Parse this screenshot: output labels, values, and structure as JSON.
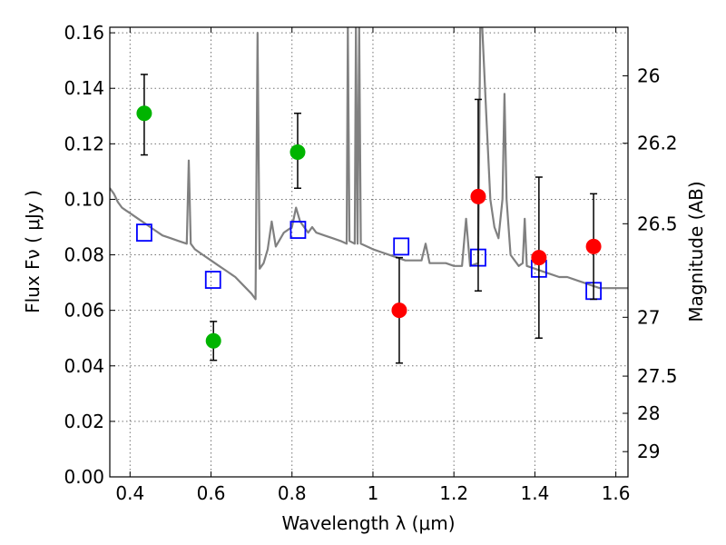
{
  "chart_data": {
    "type": "scatter",
    "xlabel": "Wavelength  λ (μm)",
    "ylabel": "Flux  Fν  ( μJy )",
    "ylabel_right": "Magnitude (AB)",
    "xlim": [
      0.35,
      1.63
    ],
    "ylim": [
      0.0,
      0.162
    ],
    "grid": true,
    "x_ticks": [
      0.4,
      0.6,
      0.8,
      1.0,
      1.2,
      1.4,
      1.6
    ],
    "x_tick_labels": [
      "0.4",
      "0.6",
      "0.8",
      "1",
      "1.2",
      "1.4",
      "1.6"
    ],
    "y_ticks": [
      0.0,
      0.02,
      0.04,
      0.06,
      0.08,
      0.1,
      0.12,
      0.14,
      0.16
    ],
    "y_tick_labels": [
      "0.00",
      "0.02",
      "0.04",
      "0.06",
      "0.08",
      "0.10",
      "0.12",
      "0.14",
      "0.16"
    ],
    "right_ticks": [
      {
        "label": "26",
        "flux": 0.1445
      },
      {
        "label": "26.2",
        "flux": 0.1202
      },
      {
        "label": "26.5",
        "flux": 0.0912
      },
      {
        "label": "27",
        "flux": 0.0575
      },
      {
        "label": "27.5",
        "flux": 0.0363
      },
      {
        "label": "28",
        "flux": 0.0229
      },
      {
        "label": "29",
        "flux": 0.0091
      }
    ],
    "series": [
      {
        "kind": "spectrum",
        "color": "#808080",
        "points": [
          [
            0.35,
            0.104
          ],
          [
            0.36,
            0.102
          ],
          [
            0.37,
            0.099
          ],
          [
            0.38,
            0.097
          ],
          [
            0.39,
            0.096
          ],
          [
            0.4,
            0.095
          ],
          [
            0.42,
            0.093
          ],
          [
            0.44,
            0.091
          ],
          [
            0.46,
            0.089
          ],
          [
            0.48,
            0.087
          ],
          [
            0.5,
            0.086
          ],
          [
            0.52,
            0.085
          ],
          [
            0.54,
            0.084
          ],
          [
            0.545,
            0.114
          ],
          [
            0.55,
            0.084
          ],
          [
            0.56,
            0.082
          ],
          [
            0.58,
            0.08
          ],
          [
            0.6,
            0.078
          ],
          [
            0.62,
            0.076
          ],
          [
            0.64,
            0.074
          ],
          [
            0.66,
            0.072
          ],
          [
            0.68,
            0.069
          ],
          [
            0.7,
            0.066
          ],
          [
            0.71,
            0.064
          ],
          [
            0.715,
            0.16
          ],
          [
            0.72,
            0.075
          ],
          [
            0.73,
            0.077
          ],
          [
            0.74,
            0.082
          ],
          [
            0.75,
            0.092
          ],
          [
            0.76,
            0.083
          ],
          [
            0.78,
            0.088
          ],
          [
            0.8,
            0.09
          ],
          [
            0.81,
            0.097
          ],
          [
            0.82,
            0.092
          ],
          [
            0.83,
            0.09
          ],
          [
            0.84,
            0.088
          ],
          [
            0.85,
            0.09
          ],
          [
            0.86,
            0.088
          ],
          [
            0.88,
            0.087
          ],
          [
            0.9,
            0.086
          ],
          [
            0.92,
            0.085
          ],
          [
            0.935,
            0.084
          ],
          [
            0.938,
            0.162
          ],
          [
            0.942,
            0.085
          ],
          [
            0.955,
            0.084
          ],
          [
            0.958,
            0.162
          ],
          [
            0.962,
            0.084
          ],
          [
            0.966,
            0.162
          ],
          [
            0.97,
            0.084
          ],
          [
            1.0,
            0.082
          ],
          [
            1.02,
            0.081
          ],
          [
            1.04,
            0.08
          ],
          [
            1.06,
            0.079
          ],
          [
            1.08,
            0.078
          ],
          [
            1.1,
            0.078
          ],
          [
            1.12,
            0.078
          ],
          [
            1.13,
            0.084
          ],
          [
            1.14,
            0.077
          ],
          [
            1.16,
            0.077
          ],
          [
            1.18,
            0.077
          ],
          [
            1.2,
            0.076
          ],
          [
            1.22,
            0.076
          ],
          [
            1.23,
            0.093
          ],
          [
            1.24,
            0.076
          ],
          [
            1.26,
            0.077
          ],
          [
            1.265,
            0.162
          ],
          [
            1.27,
            0.162
          ],
          [
            1.28,
            0.13
          ],
          [
            1.29,
            0.1
          ],
          [
            1.3,
            0.09
          ],
          [
            1.31,
            0.086
          ],
          [
            1.32,
            0.1
          ],
          [
            1.325,
            0.138
          ],
          [
            1.33,
            0.1
          ],
          [
            1.34,
            0.08
          ],
          [
            1.36,
            0.076
          ],
          [
            1.37,
            0.077
          ],
          [
            1.375,
            0.093
          ],
          [
            1.38,
            0.076
          ],
          [
            1.4,
            0.075
          ],
          [
            1.42,
            0.074
          ],
          [
            1.44,
            0.073
          ],
          [
            1.46,
            0.072
          ],
          [
            1.48,
            0.072
          ],
          [
            1.5,
            0.071
          ],
          [
            1.52,
            0.07
          ],
          [
            1.54,
            0.069
          ],
          [
            1.56,
            0.068
          ],
          [
            1.58,
            0.068
          ],
          [
            1.6,
            0.068
          ],
          [
            1.63,
            0.068
          ]
        ]
      },
      {
        "kind": "model",
        "marker": "open-square",
        "color": "#0000ff",
        "points": [
          [
            0.435,
            0.088
          ],
          [
            0.605,
            0.071
          ],
          [
            0.815,
            0.089
          ],
          [
            1.07,
            0.083
          ],
          [
            1.26,
            0.079
          ],
          [
            1.41,
            0.075
          ],
          [
            1.545,
            0.067
          ]
        ]
      },
      {
        "kind": "observed",
        "marker": "filled-circle",
        "color": "#00b400",
        "points": [
          {
            "x": 0.435,
            "y": 0.131,
            "yerr": [
              0.116,
              0.145
            ]
          },
          {
            "x": 0.606,
            "y": 0.049,
            "yerr": [
              0.042,
              0.056
            ]
          },
          {
            "x": 0.814,
            "y": 0.117,
            "yerr": [
              0.104,
              0.131
            ]
          }
        ]
      },
      {
        "kind": "observed",
        "marker": "filled-circle",
        "color": "#ff0000",
        "points": [
          {
            "x": 1.065,
            "y": 0.06,
            "yerr": [
              0.041,
              0.079
            ]
          },
          {
            "x": 1.26,
            "y": 0.101,
            "yerr": [
              0.067,
              0.136
            ]
          },
          {
            "x": 1.41,
            "y": 0.079,
            "yerr": [
              0.05,
              0.108
            ]
          },
          {
            "x": 1.545,
            "y": 0.083,
            "yerr": [
              0.064,
              0.102
            ]
          }
        ]
      }
    ]
  }
}
